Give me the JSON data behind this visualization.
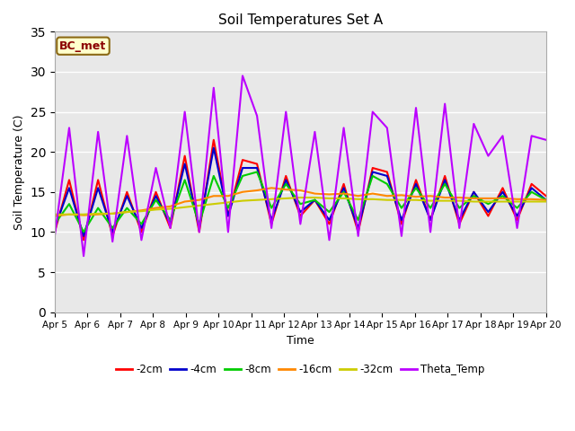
{
  "title": "Soil Temperatures Set A",
  "xlabel": "Time",
  "ylabel": "Soil Temperature (C)",
  "ylim": [
    0,
    35
  ],
  "yticks": [
    0,
    5,
    10,
    15,
    20,
    25,
    30,
    35
  ],
  "annotation_text": "BC_met",
  "annotation_color": "#8B0000",
  "annotation_bg": "#FFFFCC",
  "plot_bg": "#E8E8E8",
  "series_colors": {
    "-2cm": "#FF0000",
    "-4cm": "#0000CC",
    "-8cm": "#00CC00",
    "-16cm": "#FF8800",
    "-32cm": "#CCCC00",
    "Theta_Temp": "#BB00FF"
  },
  "x_tick_labels": [
    "Apr 5",
    "Apr 6",
    "Apr 7",
    "Apr 8",
    "Apr 9",
    "Apr 10",
    "Apr 11",
    "Apr 12",
    "Apr 13",
    "Apr 14",
    "Apr 15",
    "Apr 16",
    "Apr 17",
    "Apr 18",
    "Apr 19",
    "Apr 20"
  ],
  "legend_entries": [
    "-2cm",
    "-4cm",
    "-8cm",
    "-16cm",
    "-32cm",
    "Theta_Temp"
  ],
  "theta_vals": [
    9.5,
    23.0,
    7.0,
    22.5,
    8.8,
    22.0,
    9.0,
    18.0,
    10.5,
    25.0,
    10.0,
    28.0,
    10.0,
    29.5,
    24.5,
    10.5,
    25.0,
    11.0,
    22.5,
    9.0,
    23.0,
    9.5,
    25.0,
    23.0,
    9.5,
    25.5,
    10.0,
    26.0,
    10.5,
    23.5,
    19.5,
    22.0,
    10.5,
    22.0,
    21.5
  ],
  "cm2_vals": [
    10.0,
    16.5,
    9.0,
    16.5,
    9.5,
    15.0,
    10.0,
    15.0,
    10.5,
    19.5,
    10.0,
    21.5,
    12.0,
    19.0,
    18.5,
    11.0,
    17.0,
    12.0,
    14.0,
    11.0,
    16.0,
    10.0,
    18.0,
    17.5,
    11.0,
    16.5,
    11.5,
    17.0,
    11.0,
    15.0,
    12.0,
    15.5,
    11.5,
    16.0,
    14.5
  ],
  "cm4_vals": [
    10.5,
    15.5,
    9.5,
    15.5,
    10.0,
    14.5,
    10.5,
    14.5,
    11.0,
    18.5,
    10.5,
    20.5,
    12.0,
    18.0,
    18.0,
    11.5,
    16.5,
    12.5,
    14.0,
    11.5,
    15.5,
    10.5,
    17.5,
    17.0,
    11.5,
    16.0,
    11.5,
    16.5,
    11.5,
    15.0,
    12.5,
    15.0,
    12.0,
    15.5,
    14.0
  ],
  "cm8_vals": [
    11.0,
    13.5,
    10.0,
    13.0,
    10.5,
    13.0,
    11.0,
    14.0,
    11.5,
    16.5,
    11.0,
    17.0,
    13.0,
    17.0,
    17.5,
    13.0,
    16.0,
    13.5,
    14.0,
    12.5,
    15.0,
    11.5,
    17.0,
    16.0,
    13.0,
    15.5,
    13.0,
    16.0,
    13.0,
    14.5,
    13.5,
    14.5,
    13.0,
    15.0,
    14.0
  ],
  "cm16_vals": [
    12.0,
    12.2,
    12.1,
    12.2,
    12.3,
    12.5,
    12.7,
    13.0,
    13.2,
    13.8,
    14.0,
    14.5,
    14.5,
    15.0,
    15.2,
    15.5,
    15.3,
    15.2,
    14.8,
    14.7,
    14.8,
    14.5,
    14.8,
    14.5,
    14.6,
    14.4,
    14.5,
    14.3,
    14.3,
    14.2,
    14.2,
    14.2,
    14.1,
    14.1,
    14.0
  ],
  "cm32_vals": [
    12.2,
    12.2,
    12.2,
    12.3,
    12.3,
    12.5,
    12.6,
    12.8,
    12.9,
    13.1,
    13.3,
    13.5,
    13.7,
    13.9,
    14.0,
    14.1,
    14.2,
    14.3,
    14.3,
    14.2,
    14.2,
    14.1,
    14.1,
    14.0,
    14.0,
    14.0,
    13.9,
    13.9,
    13.9,
    13.8,
    13.8,
    13.8,
    13.8,
    13.8,
    13.8
  ]
}
